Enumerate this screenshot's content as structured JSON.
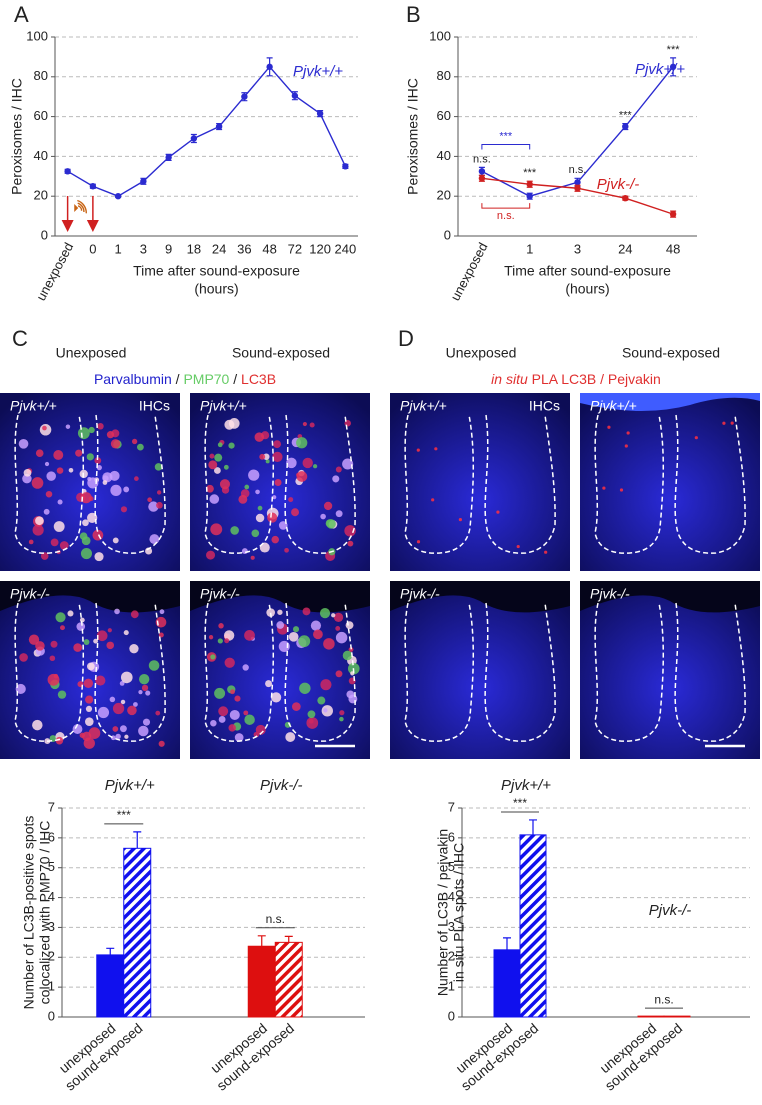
{
  "panel_labels": [
    "A",
    "B",
    "C",
    "D"
  ],
  "chart_data": [
    {
      "type": "line",
      "categories": [
        "unexposed",
        "0",
        "1",
        "3",
        "9",
        "18",
        "24",
        "36",
        "48",
        "72",
        "120",
        "240"
      ],
      "series": [
        {
          "name": "Pjvk+/+",
          "color": "#2b2bd0",
          "values": [
            32.5,
            25,
            20,
            27.5,
            39.5,
            49,
            55,
            70,
            85,
            70.5,
            61.5,
            35
          ],
          "errors": [
            1,
            1,
            0.5,
            1.5,
            1.5,
            2,
            1.5,
            2,
            4.5,
            2,
            1.5,
            1
          ]
        }
      ],
      "ylim": [
        0,
        100
      ],
      "yticks": [
        0,
        20,
        40,
        60,
        80,
        100
      ],
      "grid": true,
      "y_label": [
        "Peroxisomes / IHC"
      ],
      "x_label": [
        "Time after sound-exposure",
        "(hours)"
      ]
    },
    {
      "type": "line",
      "categories": [
        "unexposed",
        "1",
        "3",
        "24",
        "48"
      ],
      "series": [
        {
          "name": "Pjvk+/+",
          "color": "#2b2bd0",
          "values": [
            32.5,
            20,
            27,
            55,
            85
          ],
          "errors": [
            2,
            1.5,
            2,
            1.5,
            4.5
          ]
        },
        {
          "name": "Pjvk-/-",
          "color": "#d02020",
          "values": [
            29,
            26,
            24,
            19,
            11
          ],
          "errors": [
            1.5,
            1.5,
            1.5,
            1,
            1.5
          ]
        }
      ],
      "significance": [
        "n.s.",
        "***",
        "n.s.",
        "***",
        "***"
      ],
      "brackets": [
        {
          "text": "***",
          "color": "#2b2bd0"
        },
        {
          "text": "n.s.",
          "color": "#d02020"
        }
      ],
      "ylim": [
        0,
        100
      ],
      "yticks": [
        0,
        20,
        40,
        60,
        80,
        100
      ],
      "grid": true,
      "y_label": [
        "Peroxisomes / IHC"
      ],
      "x_label": [
        "Time after sound-exposure",
        "(hours)"
      ]
    },
    {
      "type": "bar",
      "categories": [
        "unexposed",
        "sound-exposed"
      ],
      "hatched": [
        false,
        true
      ],
      "series": [
        {
          "name": "Pjvk+/+",
          "color": "#1010ee",
          "values": [
            2.08,
            5.65
          ],
          "errors": [
            0.22,
            0.55
          ]
        },
        {
          "name": "Pjvk-/-",
          "color": "#dd0f0f",
          "values": [
            2.37,
            2.5
          ],
          "errors": [
            0.35,
            0.2
          ]
        }
      ],
      "significance": [
        "***",
        "n.s."
      ],
      "ylim": [
        0,
        7
      ],
      "yticks": [
        0,
        1,
        2,
        3,
        4,
        5,
        6,
        7
      ],
      "grid": true,
      "y_label": [
        "Number of LC3B-positive spots",
        "colocalized with PMP70 / IHC"
      ]
    },
    {
      "type": "bar",
      "categories": [
        "unexposed",
        "sound-exposed"
      ],
      "hatched": [
        false,
        true
      ],
      "series": [
        {
          "name": "Pjvk+/+",
          "color": "#1010ee",
          "values": [
            2.25,
            6.1
          ],
          "errors": [
            0.4,
            0.5
          ]
        },
        {
          "name": "Pjvk-/-",
          "color": "#dd0f0f",
          "values": [
            0.03,
            0.03
          ],
          "errors": [
            0,
            0
          ]
        }
      ],
      "significance": [
        "***",
        "n.s."
      ],
      "ylim": [
        0,
        7
      ],
      "yticks": [
        0,
        1,
        2,
        3,
        4,
        5,
        6,
        7
      ],
      "grid": true,
      "y_label": [
        "Number of LC3B / pejvakin",
        "in situ PLA spots / IHC"
      ]
    }
  ],
  "micrographs": {
    "C": {
      "columns": [
        "Unexposed",
        "Sound-exposed"
      ],
      "stain": [
        {
          "text": "Parvalbumin",
          "color": "#2222cc"
        },
        {
          "text": " / ",
          "color": "#222222"
        },
        {
          "text": "PMP70",
          "color": "#66cc66"
        },
        {
          "text": " / ",
          "color": "#222222"
        },
        {
          "text": "LC3B",
          "color": "#e03030"
        }
      ],
      "genotypes": [
        "Pjvk+/+",
        "Pjvk-/-"
      ],
      "cell_label": "IHCs"
    },
    "D": {
      "columns": [
        "Unexposed",
        "Sound-exposed"
      ],
      "stain": [
        {
          "text": "in situ",
          "color": "#e03030",
          "italic": true
        },
        {
          "text": " PLA LC3B / Pejvakin",
          "color": "#e03030"
        }
      ],
      "genotypes": [
        "Pjvk+/+",
        "Pjvk-/-"
      ],
      "cell_label": "IHCs"
    }
  }
}
